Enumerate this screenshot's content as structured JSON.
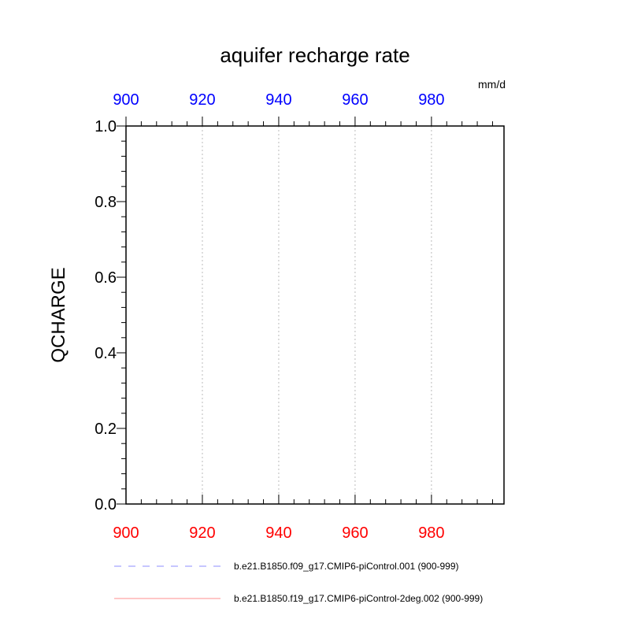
{
  "chart_data": {
    "type": "line",
    "title": "aquifer recharge rate",
    "units": "mm/d",
    "xlabel": "",
    "ylabel": "QCHARGE",
    "xlim": [
      900,
      999
    ],
    "ylim": [
      0,
      1
    ],
    "x_ticks": [
      "900",
      "920",
      "940",
      "960",
      "980"
    ],
    "y_ticks": [
      "0.0",
      "0.2",
      "0.4",
      "0.6",
      "0.8",
      "1.0"
    ],
    "top_axis_color": "#0000ff",
    "bottom_axis_color": "#ff0000",
    "grid": "vertical dotted at major x ticks",
    "legend_position": "bottom",
    "series": [
      {
        "name": "b.e21.B1850.f09_g17.CMIP6-piControl.001 (900-999)",
        "color": "#0000ff",
        "style": "dashed",
        "values": []
      },
      {
        "name": "b.e21.B1850.f19_g17.CMIP6-piControl-2deg.002 (900-999)",
        "color": "#ff0000",
        "style": "solid",
        "values": []
      }
    ]
  }
}
